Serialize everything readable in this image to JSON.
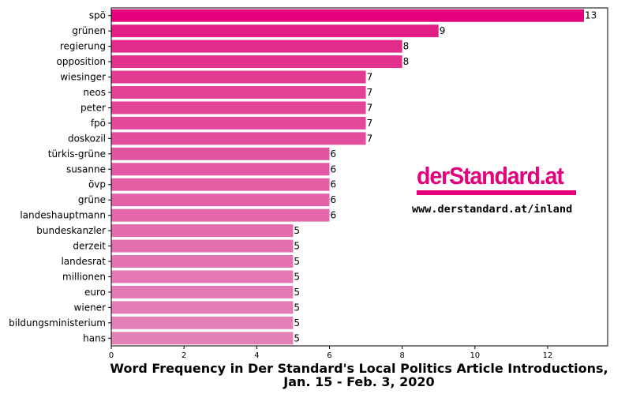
{
  "chart_data": {
    "type": "bar",
    "orientation": "horizontal",
    "categories": [
      "spö",
      "grünen",
      "regierung",
      "opposition",
      "wiesinger",
      "neos",
      "peter",
      "fpö",
      "doskozil",
      "türkis-grüne",
      "susanne",
      "övp",
      "grüne",
      "landeshauptmann",
      "bundeskanzler",
      "derzeit",
      "landesrat",
      "millionen",
      "euro",
      "wiener",
      "bildungsministerium",
      "hans"
    ],
    "values": [
      13,
      9,
      8,
      8,
      7,
      7,
      7,
      7,
      7,
      6,
      6,
      6,
      6,
      6,
      5,
      5,
      5,
      5,
      5,
      5,
      5,
      5
    ],
    "xlim": [
      0,
      13.65
    ],
    "xticks": [
      0,
      2,
      4,
      6,
      8,
      10,
      12
    ],
    "grid": false,
    "colors": [
      "#e5007e",
      "#e31f86",
      "#e22b8b",
      "#e2318e",
      "#e23b92",
      "#e24196",
      "#e24598",
      "#e2499b",
      "#e24e9d",
      "#e354a0",
      "#e359a3",
      "#e35da5",
      "#e362a7",
      "#e367a9",
      "#e36cad",
      "#e370ae",
      "#e374b1",
      "#e378b3",
      "#e37ab4",
      "#e37cb5",
      "#e37fb7",
      "#e381b7"
    ],
    "title": "Word Frequency in Der Standard's Local Politics Article Introductions,\nJan. 15 - Feb. 3, 2020"
  },
  "title_lines": [
    "Word Frequency in Der Standard's Local Politics Article Introductions,",
    "Jan. 15 - Feb. 3, 2020"
  ],
  "logo": {
    "text": "derStandard.at",
    "url": "www.derstandard.at/inland",
    "color": "#e5007e"
  }
}
